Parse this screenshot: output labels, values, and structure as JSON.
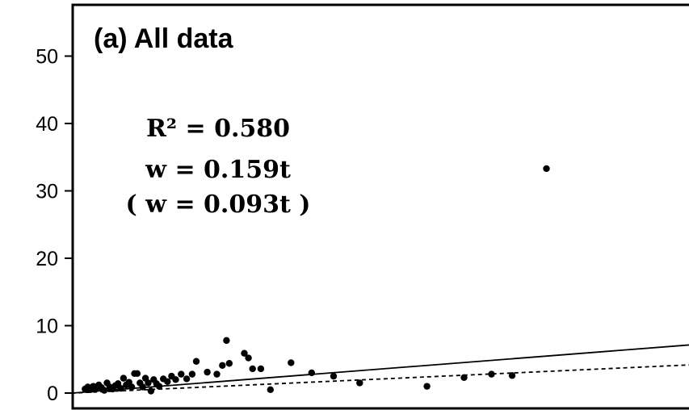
{
  "chart_data": {
    "type": "scatter",
    "title": "(a) All data",
    "xlabel": "",
    "ylabel": "",
    "xlim": [
      0,
      45
    ],
    "ylim": [
      0,
      55
    ],
    "y_ticks": [
      0,
      10,
      20,
      30,
      40,
      50
    ],
    "y_tick_labels": [
      "0",
      "10",
      "20",
      "30",
      "40",
      "50"
    ],
    "grid": false,
    "annotations": {
      "r2": "R² = 0.580",
      "fit": "w = 0.159t",
      "fit_alt": "( w = 0.093t )"
    },
    "lines": [
      {
        "slope": 0.159,
        "style": "solid"
      },
      {
        "slope": 0.093,
        "style": "dashed"
      }
    ],
    "series": [
      {
        "points": [
          [
            0.9,
            0.6
          ],
          [
            1.1,
            0.9
          ],
          [
            1.3,
            0.5
          ],
          [
            1.5,
            1.0
          ],
          [
            1.7,
            0.7
          ],
          [
            1.9,
            1.2
          ],
          [
            2.1,
            0.8
          ],
          [
            2.3,
            0.4
          ],
          [
            2.5,
            1.5
          ],
          [
            2.7,
            0.9
          ],
          [
            2.9,
            0.6
          ],
          [
            3.1,
            1.1
          ],
          [
            3.3,
            1.4
          ],
          [
            3.5,
            0.7
          ],
          [
            3.7,
            2.2
          ],
          [
            3.9,
            1.2
          ],
          [
            4.1,
            1.6
          ],
          [
            4.3,
            0.9
          ],
          [
            4.5,
            2.9
          ],
          [
            4.7,
            2.9
          ],
          [
            4.9,
            1.5
          ],
          [
            5.1,
            0.9
          ],
          [
            5.3,
            2.2
          ],
          [
            5.5,
            1.5
          ],
          [
            5.7,
            0.3
          ],
          [
            5.9,
            2.0
          ],
          [
            6.1,
            1.4
          ],
          [
            6.3,
            1.0
          ],
          [
            6.6,
            2.1
          ],
          [
            6.9,
            1.7
          ],
          [
            7.2,
            2.5
          ],
          [
            7.5,
            2.0
          ],
          [
            7.9,
            2.8
          ],
          [
            8.3,
            2.1
          ],
          [
            8.7,
            2.8
          ],
          [
            9.0,
            4.7
          ],
          [
            9.8,
            3.1
          ],
          [
            10.5,
            2.8
          ],
          [
            10.9,
            4.1
          ],
          [
            11.2,
            7.8
          ],
          [
            11.4,
            4.4
          ],
          [
            12.5,
            5.9
          ],
          [
            12.8,
            5.2
          ],
          [
            13.1,
            3.6
          ],
          [
            13.7,
            3.6
          ],
          [
            14.4,
            0.5
          ],
          [
            15.9,
            4.5
          ],
          [
            17.4,
            3.0
          ],
          [
            19.0,
            2.5
          ],
          [
            20.9,
            1.5
          ],
          [
            25.8,
            1.0
          ],
          [
            28.5,
            2.3
          ],
          [
            30.5,
            2.8
          ],
          [
            32.0,
            2.6
          ],
          [
            34.5,
            33.3
          ]
        ]
      }
    ]
  }
}
